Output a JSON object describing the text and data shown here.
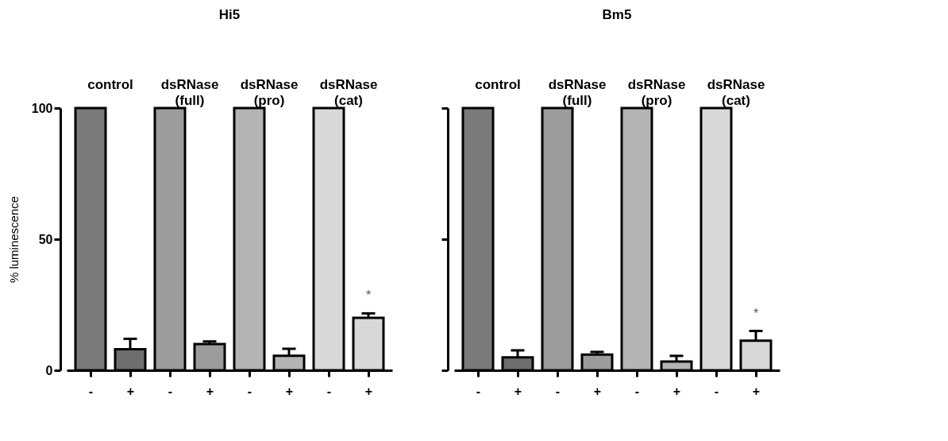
{
  "chart_data": [
    {
      "type": "bar",
      "title": "Hi5",
      "ylabel": "% luminescence",
      "categories": [
        "-",
        "+",
        "-",
        "+",
        "-",
        "+",
        "-",
        "+"
      ],
      "values": [
        100,
        8,
        100,
        10,
        100,
        5.5,
        100,
        20
      ],
      "errors": [
        null,
        4,
        null,
        1,
        null,
        2.7,
        null,
        1.7
      ],
      "colors": [
        "#7a7a7a",
        "#6e6e6e",
        "#9c9c9c",
        "#9c9c9c",
        "#b4b4b4",
        "#b4b4b4",
        "#d8d8d8",
        "#d8d8d8"
      ],
      "ylim": [
        0,
        100
      ],
      "yticks": [
        0,
        50,
        100
      ],
      "grid": false,
      "annotations": [
        "control",
        "dsRNase (full)",
        "dsRNase (pro)",
        "dsRNase (cat)",
        "*"
      ]
    },
    {
      "type": "bar",
      "title": "Bm5",
      "categories": [
        "-",
        "+",
        "-",
        "+",
        "-",
        "+",
        "-",
        "+"
      ],
      "values": [
        100,
        4.9,
        100,
        6,
        100,
        3.3,
        100,
        11.3
      ],
      "errors": [
        null,
        2.7,
        null,
        1,
        null,
        2.2,
        null,
        3.7
      ],
      "colors": [
        "#7a7a7a",
        "#6e6e6e",
        "#9c9c9c",
        "#9c9c9c",
        "#b4b4b4",
        "#b4b4b4",
        "#d8d8d8",
        "#d8d8d8"
      ],
      "ylim": [
        0,
        100
      ],
      "yticks": [
        0,
        50,
        100
      ],
      "grid": false,
      "tick_labels": "x",
      "annotations": [
        "control",
        "dsRNase (full)",
        "dsRNase (pro)",
        "dsRNase (cat)",
        "*"
      ]
    }
  ]
}
